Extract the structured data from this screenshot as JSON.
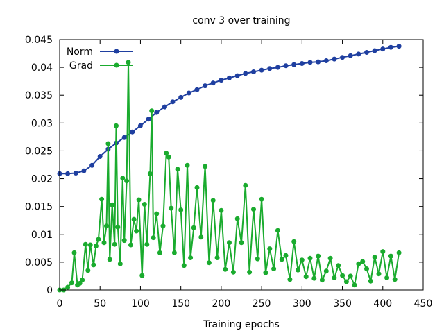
{
  "chart_data": {
    "type": "line",
    "title": "conv 3 over training",
    "xlabel": "Training epochs",
    "ylabel": "",
    "xlim": [
      0,
      450
    ],
    "ylim": [
      0,
      0.045
    ],
    "xticks": [
      0,
      50,
      100,
      150,
      200,
      250,
      300,
      350,
      400,
      450
    ],
    "xtick_labels": [
      "0",
      "50",
      "100",
      "150",
      "200",
      "250",
      "300",
      "350",
      "400",
      "450"
    ],
    "yticks": [
      0,
      0.005,
      0.01,
      0.015,
      0.02,
      0.025,
      0.03,
      0.035,
      0.04,
      0.045
    ],
    "ytick_labels": [
      "0",
      "0.005",
      "0.01",
      "0.015",
      "0.02",
      "0.025",
      "0.03",
      "0.035",
      "0.04",
      "0.045"
    ],
    "grid": false,
    "legend_position": "top-left",
    "series": [
      {
        "name": "Norm",
        "color": "#1f3fa0",
        "x": [
          0,
          10,
          20,
          30,
          40,
          50,
          60,
          70,
          80,
          90,
          100,
          110,
          120,
          130,
          140,
          150,
          160,
          170,
          180,
          190,
          200,
          210,
          220,
          230,
          240,
          250,
          260,
          270,
          280,
          290,
          300,
          310,
          320,
          330,
          340,
          350,
          360,
          370,
          380,
          390,
          400,
          410,
          420
        ],
        "values": [
          0.0209,
          0.0209,
          0.021,
          0.0214,
          0.0224,
          0.024,
          0.0253,
          0.0264,
          0.0274,
          0.0284,
          0.0295,
          0.0307,
          0.0319,
          0.0329,
          0.0338,
          0.0346,
          0.0354,
          0.036,
          0.0367,
          0.0372,
          0.0377,
          0.0381,
          0.0385,
          0.0389,
          0.0392,
          0.0395,
          0.0398,
          0.04,
          0.0403,
          0.0405,
          0.0407,
          0.0409,
          0.041,
          0.0412,
          0.0415,
          0.0418,
          0.0421,
          0.0424,
          0.0427,
          0.043,
          0.0433,
          0.0436,
          0.0438
        ]
      },
      {
        "name": "Grad",
        "color": "#1aab2e",
        "x": [
          0,
          5,
          10,
          15,
          18,
          22,
          25,
          28,
          32,
          35,
          38,
          42,
          45,
          48,
          52,
          55,
          58,
          60,
          62,
          65,
          68,
          70,
          72,
          75,
          78,
          80,
          83,
          85,
          88,
          92,
          95,
          98,
          102,
          105,
          108,
          112,
          114,
          116,
          120,
          124,
          128,
          132,
          135,
          138,
          142,
          146,
          150,
          154,
          158,
          162,
          166,
          170,
          175,
          180,
          185,
          190,
          195,
          200,
          205,
          210,
          215,
          220,
          225,
          230,
          235,
          240,
          245,
          250,
          255,
          260,
          265,
          270,
          275,
          280,
          285,
          290,
          295,
          300,
          305,
          310,
          315,
          320,
          325,
          330,
          335,
          340,
          345,
          350,
          355,
          360,
          365,
          370,
          375,
          380,
          385,
          390,
          395,
          400,
          405,
          410,
          415,
          420
        ],
        "values": [
          0.0,
          0.0,
          0.0005,
          0.0013,
          0.0067,
          0.0009,
          0.0012,
          0.0018,
          0.0082,
          0.0035,
          0.0081,
          0.0045,
          0.0079,
          0.0091,
          0.0163,
          0.0085,
          0.0115,
          0.0263,
          0.0055,
          0.0153,
          0.0082,
          0.0295,
          0.0113,
          0.0047,
          0.0201,
          0.0089,
          0.0196,
          0.0409,
          0.0081,
          0.0127,
          0.0106,
          0.0162,
          0.0026,
          0.0154,
          0.0082,
          0.0209,
          0.0322,
          0.0094,
          0.0137,
          0.0067,
          0.0115,
          0.0246,
          0.0239,
          0.0147,
          0.0067,
          0.0217,
          0.0144,
          0.0044,
          0.0224,
          0.0058,
          0.0112,
          0.0184,
          0.0095,
          0.0222,
          0.0049,
          0.0161,
          0.0058,
          0.0143,
          0.0037,
          0.0085,
          0.0032,
          0.0128,
          0.0085,
          0.0188,
          0.0032,
          0.0145,
          0.0056,
          0.0163,
          0.0031,
          0.0074,
          0.0038,
          0.0107,
          0.0055,
          0.0062,
          0.0019,
          0.0087,
          0.0036,
          0.0054,
          0.0024,
          0.0057,
          0.0021,
          0.0061,
          0.0018,
          0.0034,
          0.0057,
          0.0022,
          0.0044,
          0.0026,
          0.0015,
          0.0025,
          0.0009,
          0.0047,
          0.0051,
          0.0038,
          0.0016,
          0.0059,
          0.0029,
          0.0069,
          0.0022,
          0.0061,
          0.0019,
          0.0067
        ]
      }
    ]
  }
}
